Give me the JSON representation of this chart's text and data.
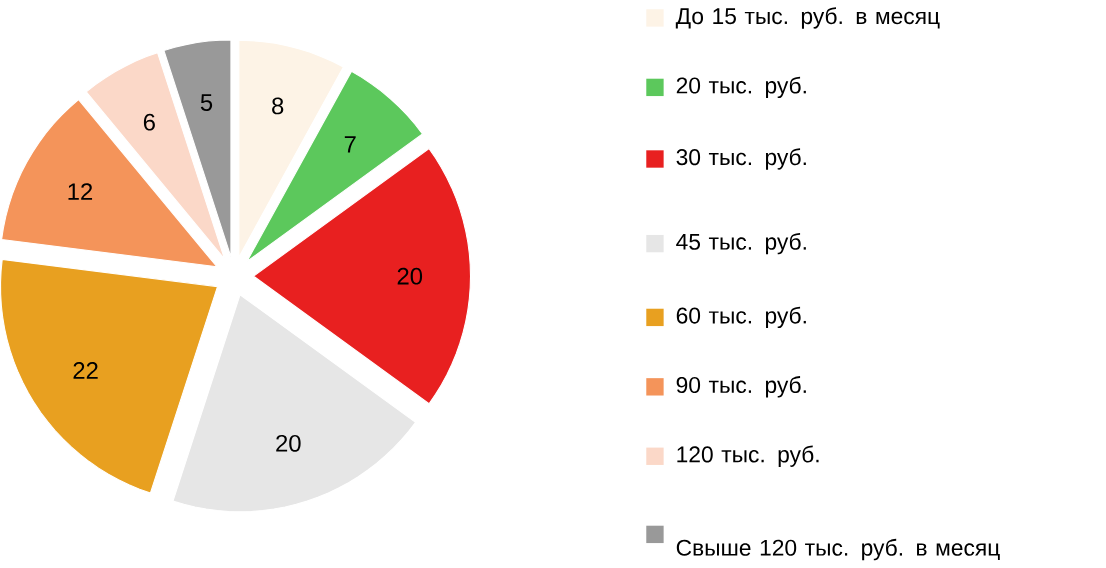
{
  "chart_data": {
    "type": "pie",
    "categories": [
      "До 15 тыс. руб. в месяц",
      "20 тыс. руб.",
      "30 тыс. руб.",
      "45 тыс. руб.",
      "60 тыс. руб.",
      "90 тыс. руб.",
      "120 тыс. руб.",
      "Свыше 120 тыс. руб. в месяц"
    ],
    "values": [
      8,
      7,
      20,
      20,
      22,
      12,
      6,
      5
    ],
    "colors": [
      "#fdf3e6",
      "#5cc85c",
      "#e82020",
      "#e6e6e6",
      "#e8a020",
      "#f4945a",
      "#fbd8c8",
      "#999999"
    ],
    "data_labels": true,
    "legend": "right"
  }
}
